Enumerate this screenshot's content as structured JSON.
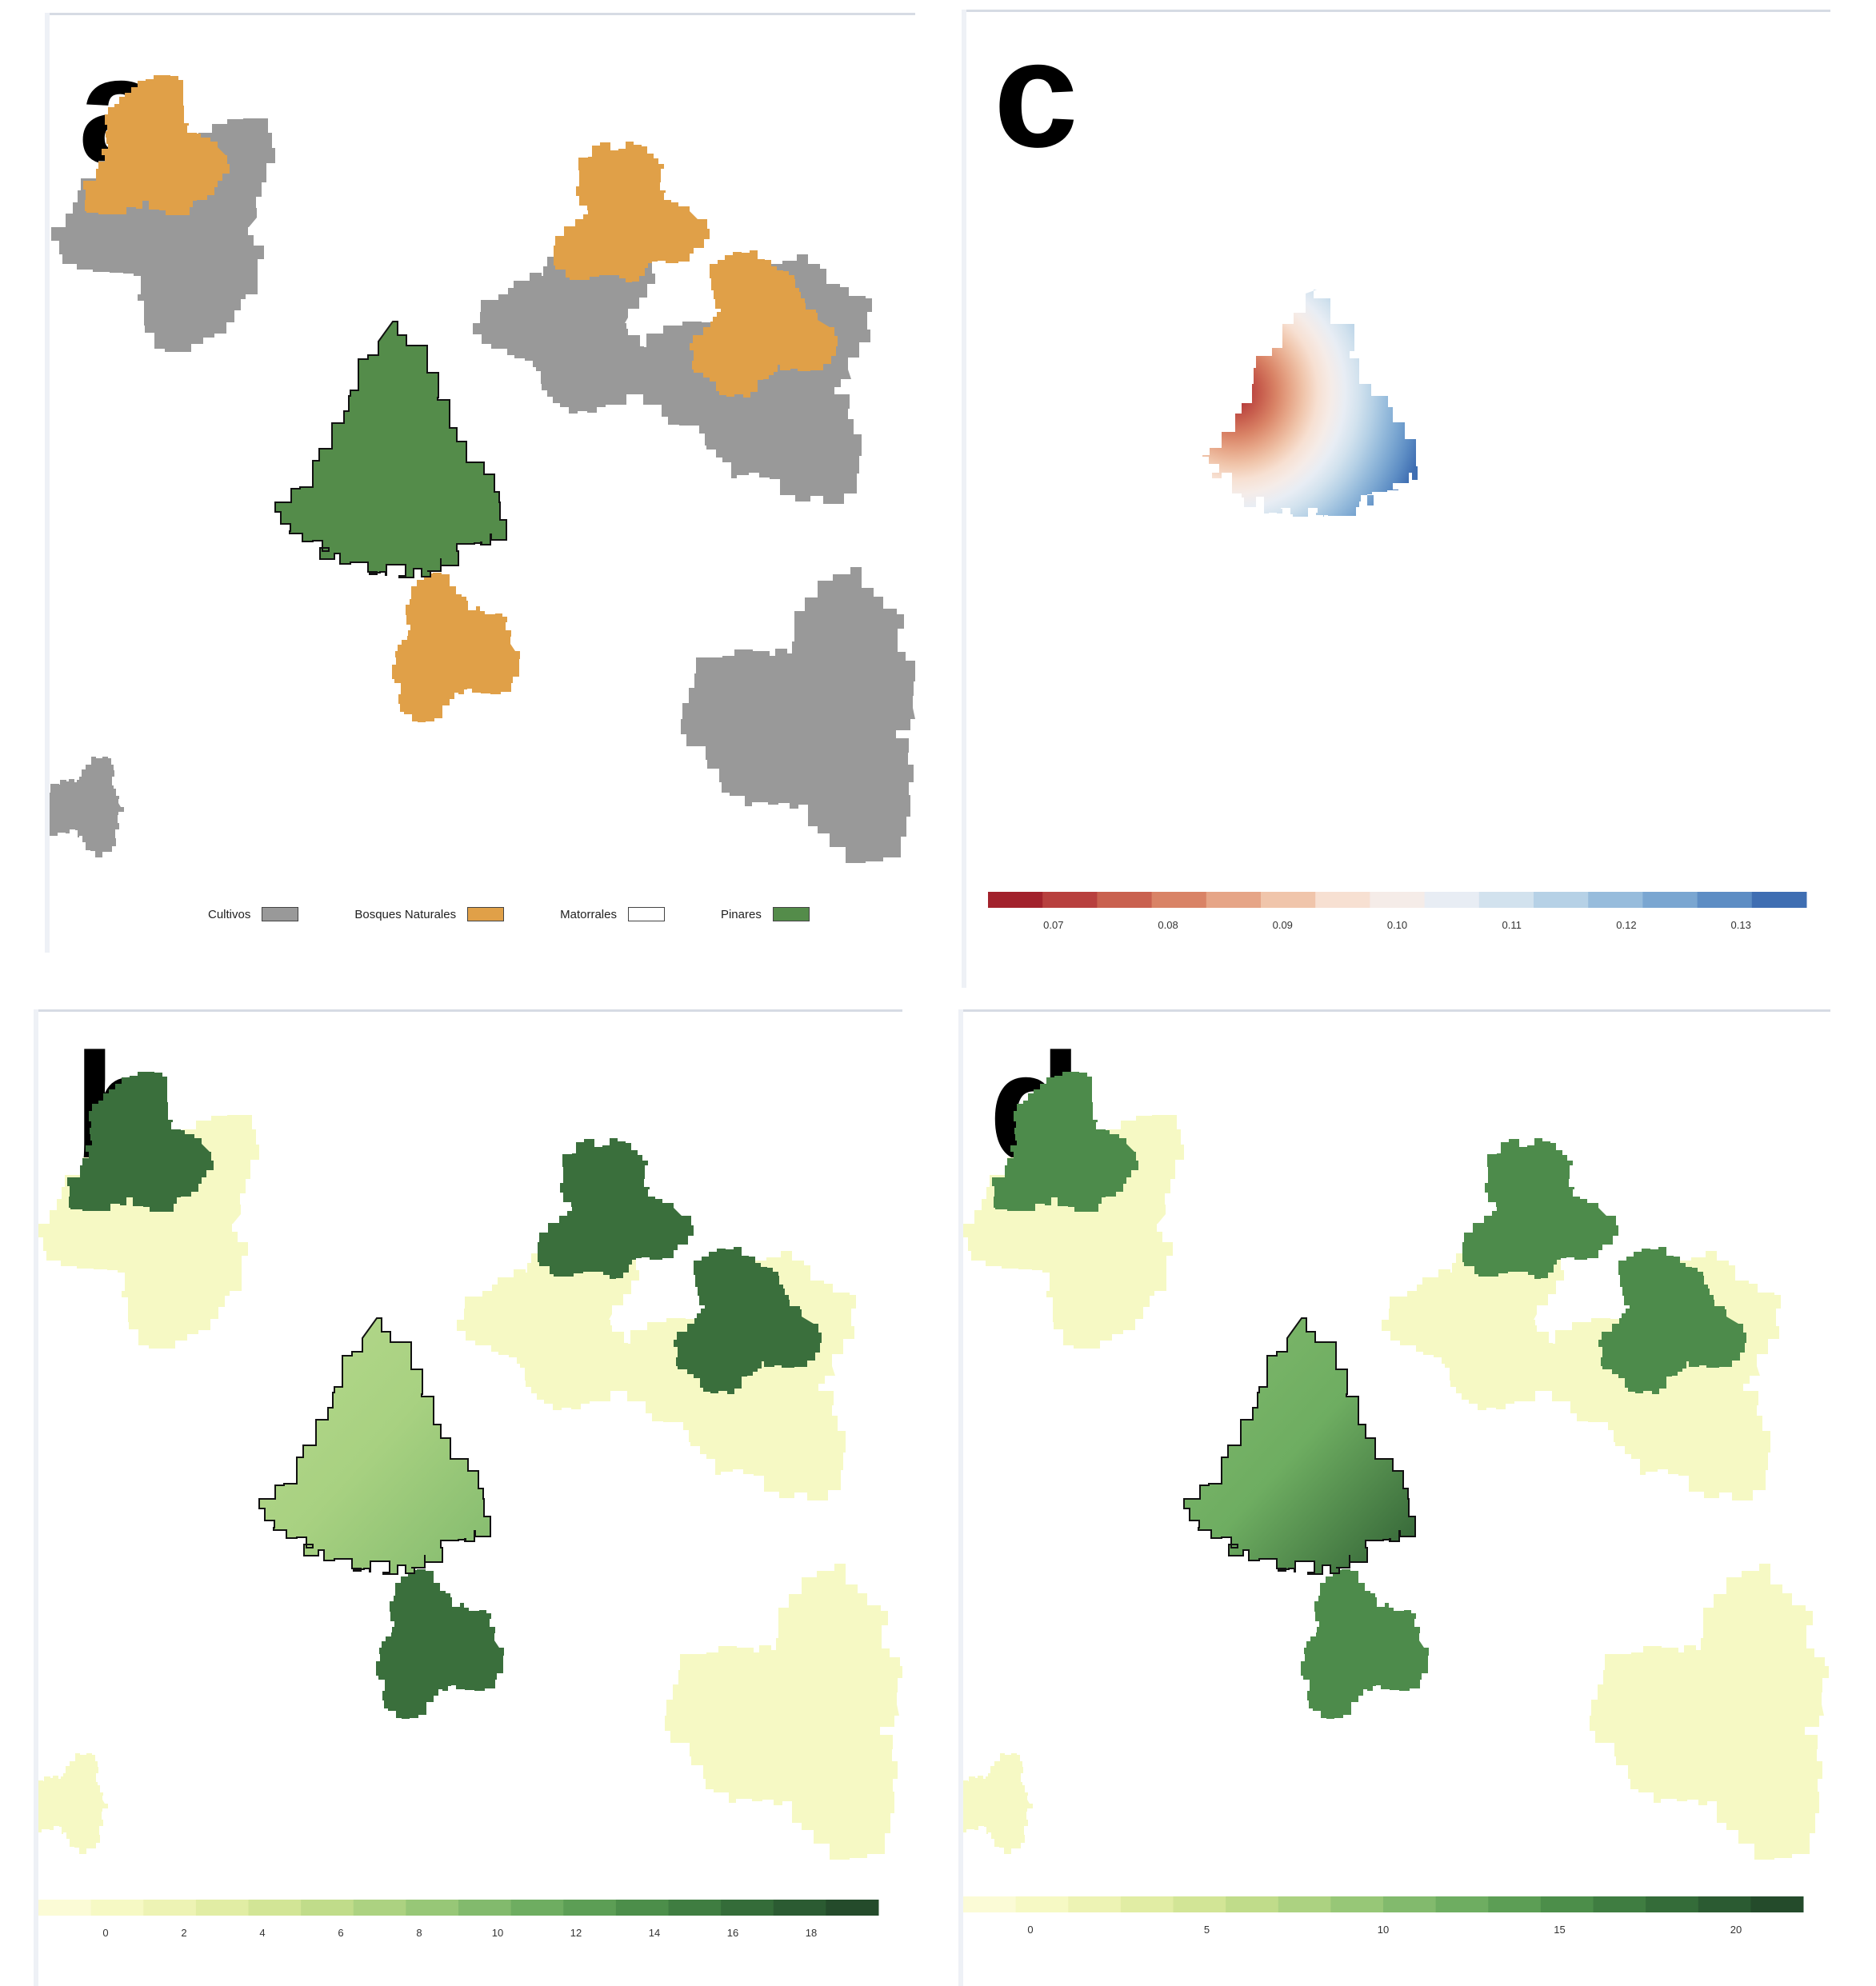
{
  "panels": [
    {
      "id": "a",
      "letter": "a",
      "legend": [
        {
          "label": "Cultivos",
          "color": "#999999"
        },
        {
          "label": "Bosques Naturales",
          "color": "#e0a048"
        },
        {
          "label": "Matorrales",
          "color": "#ffffff"
        },
        {
          "label": "Pinares",
          "color": "#548c4a"
        }
      ]
    },
    {
      "id": "c",
      "letter": "c",
      "colorbar": {
        "colors": [
          "#a2222c",
          "#b8403e",
          "#c9614f",
          "#d98366",
          "#e6a587",
          "#f0c5ab",
          "#f7e0d2",
          "#f5ece8",
          "#e8edf4",
          "#d2e2ee",
          "#b6d1e6",
          "#97bcdc",
          "#7aa6d1",
          "#5d8dc4",
          "#3f6eb2"
        ],
        "ticks": [
          "0.07",
          "0.08",
          "0.09",
          "0.10",
          "0.11",
          "0.12",
          "0.13"
        ]
      }
    },
    {
      "id": "b",
      "letter": "b",
      "colorbar": {
        "colors": [
          "#fbfbd6",
          "#f6f9c4",
          "#edf3b4",
          "#e1eda4",
          "#d2e596",
          "#c0dc8a",
          "#acd281",
          "#97c777",
          "#82ba6d",
          "#6ead61",
          "#5c9e55",
          "#4c8e4a",
          "#3f7d41",
          "#346c39",
          "#2b5b32",
          "#244b2b"
        ],
        "ticks": [
          "0",
          "2",
          "4",
          "6",
          "8",
          "10",
          "12",
          "14",
          "16",
          "18"
        ]
      }
    },
    {
      "id": "d",
      "letter": "d",
      "colorbar": {
        "colors": [
          "#fbfbd6",
          "#f6f9c4",
          "#edf3b4",
          "#e1eda4",
          "#d2e596",
          "#c0dc8a",
          "#acd281",
          "#97c777",
          "#82ba6d",
          "#6ead61",
          "#5c9e55",
          "#4c8e4a",
          "#3f7d41",
          "#346c39",
          "#2b5b32",
          "#244b2b"
        ],
        "ticks": [
          "0",
          "5",
          "10",
          "15",
          "20"
        ]
      }
    }
  ]
}
